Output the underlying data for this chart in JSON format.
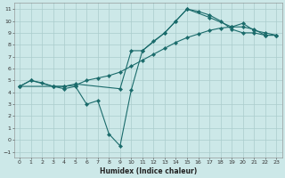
{
  "title": "",
  "xlabel": "Humidex (Indice chaleur)",
  "bg_color": "#cce8e8",
  "grid_color": "#aacccc",
  "line_color": "#1a6b6b",
  "xlim": [
    -0.5,
    23.5
  ],
  "ylim": [
    -1.5,
    11.5
  ],
  "xticks": [
    0,
    1,
    2,
    3,
    4,
    5,
    6,
    7,
    8,
    9,
    10,
    11,
    12,
    13,
    14,
    15,
    16,
    17,
    18,
    19,
    20,
    21,
    22,
    23
  ],
  "yticks": [
    -1,
    0,
    1,
    2,
    3,
    4,
    5,
    6,
    7,
    8,
    9,
    10,
    11
  ],
  "curve1_x": [
    0,
    1,
    3,
    4,
    5,
    6,
    7,
    8,
    9,
    10,
    11,
    13,
    14,
    15,
    16,
    17,
    18,
    19,
    20,
    21,
    22,
    23
  ],
  "curve1_y": [
    4.5,
    5.0,
    4.5,
    4.3,
    4.5,
    3.0,
    3.3,
    0.5,
    -0.5,
    4.2,
    7.5,
    9.0,
    10.0,
    11.0,
    10.8,
    10.5,
    10.0,
    9.3,
    9.0,
    9.0,
    8.8,
    8.8
  ],
  "curve2_x": [
    0,
    1,
    2,
    3,
    4,
    5,
    6,
    7,
    8,
    9,
    10,
    11,
    12,
    13,
    14,
    15,
    16,
    17,
    18,
    19,
    20,
    21,
    22,
    23
  ],
  "curve2_y": [
    4.5,
    5.0,
    4.8,
    4.5,
    4.5,
    4.6,
    5.0,
    5.2,
    5.4,
    5.7,
    6.2,
    6.7,
    7.2,
    7.7,
    8.2,
    8.6,
    8.9,
    9.2,
    9.4,
    9.5,
    9.5,
    9.3,
    8.8,
    8.8
  ],
  "curve3_x": [
    0,
    3,
    4,
    5,
    9,
    10,
    11,
    12,
    13,
    14,
    15,
    17,
    19,
    20,
    21,
    22,
    23
  ],
  "curve3_y": [
    4.5,
    4.5,
    4.5,
    4.7,
    4.3,
    7.5,
    7.5,
    8.3,
    9.0,
    10.0,
    11.0,
    10.3,
    9.5,
    9.8,
    9.2,
    9.0,
    8.8
  ]
}
